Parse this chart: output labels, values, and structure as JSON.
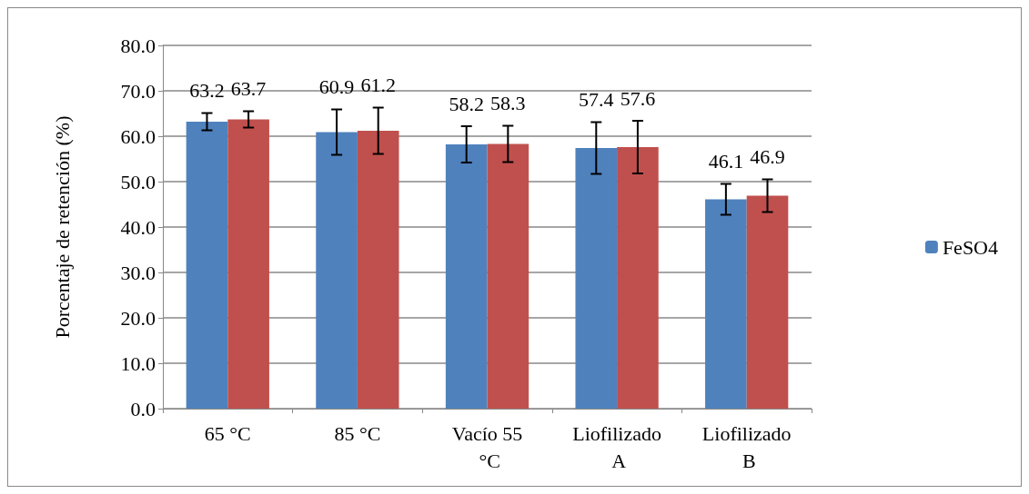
{
  "chart_data": {
    "type": "bar",
    "ylabel": "Porcentaje de retención (%)",
    "categories": [
      "65 °C",
      "85 °C",
      "Vacío 55 °C",
      "Liofilizado A",
      "Liofilizado B"
    ],
    "series": [
      {
        "name": "FeSO4",
        "color": "#4f81bd",
        "values": [
          63.2,
          60.9,
          58.2,
          57.4,
          46.1
        ],
        "errors": [
          1.9,
          5.0,
          4.0,
          5.7,
          3.4
        ]
      },
      {
        "color": "#c0504d",
        "values": [
          63.7,
          61.2,
          58.3,
          57.6,
          46.9
        ],
        "errors": [
          1.8,
          5.1,
          4.0,
          5.8,
          3.6
        ]
      }
    ],
    "ylim": [
      0,
      80
    ],
    "yticks": [
      {
        "value": 0,
        "label": "0.0"
      },
      {
        "value": 10,
        "label": "10.0"
      },
      {
        "value": 20,
        "label": "20.0"
      },
      {
        "value": 30,
        "label": "30.0"
      },
      {
        "value": 40,
        "label": "40.0"
      },
      {
        "value": 50,
        "label": "50.0"
      },
      {
        "value": 60,
        "label": "60.0"
      },
      {
        "value": 70,
        "label": "70.0"
      },
      {
        "value": 80,
        "label": "80.0"
      }
    ],
    "grid": "y",
    "legend": "right",
    "data_labels": true
  }
}
